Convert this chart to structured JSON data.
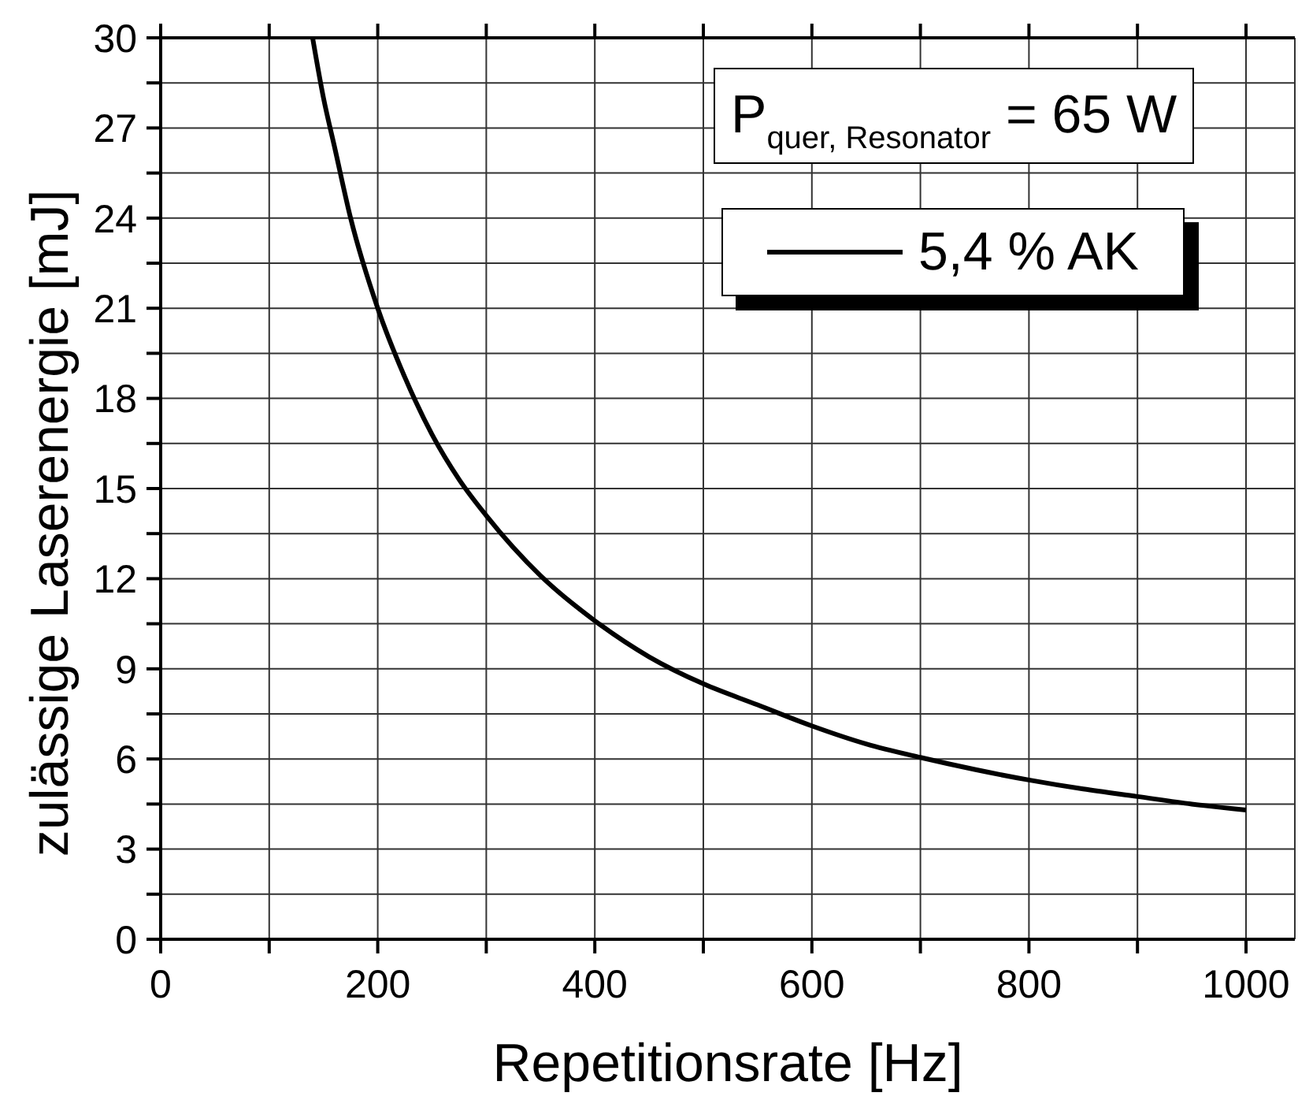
{
  "chart_data": {
    "type": "line",
    "xlabel": "Repetitionsrate [Hz]",
    "ylabel": "zulässige Laserenergie [mJ]",
    "x": [
      140,
      150,
      160,
      175,
      200,
      225,
      250,
      275,
      300,
      350,
      400,
      450,
      500,
      550,
      600,
      650,
      700,
      750,
      800,
      850,
      900,
      950,
      1000
    ],
    "series": [
      {
        "name": "5,4 % AK",
        "color": "#000000",
        "values": [
          30,
          28,
          26.4,
          24,
          21,
          18.7,
          16.8,
          15.3,
          14.1,
          12.1,
          10.6,
          9.4,
          8.5,
          7.8,
          7.1,
          6.5,
          6.05,
          5.65,
          5.3,
          5,
          4.75,
          4.5,
          4.3
        ]
      }
    ],
    "xlim": [
      0,
      1045
    ],
    "xticks": [
      0,
      {
        "value": 100,
        "label": null
      },
      200,
      {
        "value": 300,
        "label": null
      },
      400,
      {
        "value": 500,
        "label": null
      },
      600,
      {
        "value": 700,
        "label": null
      },
      800,
      {
        "value": 900,
        "label": null
      },
      1000
    ],
    "ylim": [
      0,
      30
    ],
    "yticks": [
      0,
      {
        "value": 1.5,
        "label": null
      },
      3,
      {
        "value": 4.5,
        "label": null
      },
      6,
      {
        "value": 7.5,
        "label": null
      },
      9,
      {
        "value": 10.5,
        "label": null
      },
      12,
      {
        "value": 13.5,
        "label": null
      },
      15,
      {
        "value": 16.5,
        "label": null
      },
      18,
      {
        "value": 19.5,
        "label": null
      },
      21,
      {
        "value": 22.5,
        "label": null
      },
      24,
      {
        "value": 25.5,
        "label": null
      },
      27,
      {
        "value": 28.5,
        "label": null
      },
      30
    ],
    "annotations": [
      "P$_{quer, Resonator}$ = 65 W"
    ],
    "grid": true,
    "legend": "top right",
    "marker": "none",
    "line_style": "solid"
  }
}
